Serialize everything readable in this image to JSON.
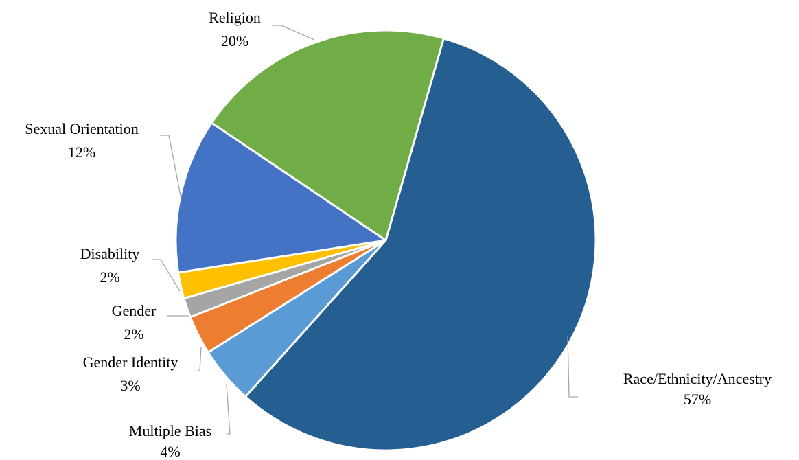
{
  "chart_data": {
    "type": "pie",
    "title": "",
    "slices": [
      {
        "name": "Race/Ethnicity/Ancestry",
        "label": "57%",
        "value": 57.2,
        "color": "#255e91"
      },
      {
        "name": "Multiple Bias",
        "label": "4%",
        "value": 4.4,
        "color": "#5b9bd5"
      },
      {
        "name": "Gender Identity",
        "label": "3%",
        "value": 3.0,
        "color": "#ed7d31"
      },
      {
        "name": "Gender",
        "label": "2%",
        "value": 1.5,
        "color": "#a5a5a5"
      },
      {
        "name": "Disability",
        "label": "2%",
        "value": 2.0,
        "color": "#ffc000"
      },
      {
        "name": "Sexual Orientation",
        "label": "12%",
        "value": 11.9,
        "color": "#4472c4"
      },
      {
        "name": "Religion",
        "label": "20%",
        "value": 20.0,
        "color": "#70ad47"
      }
    ]
  }
}
